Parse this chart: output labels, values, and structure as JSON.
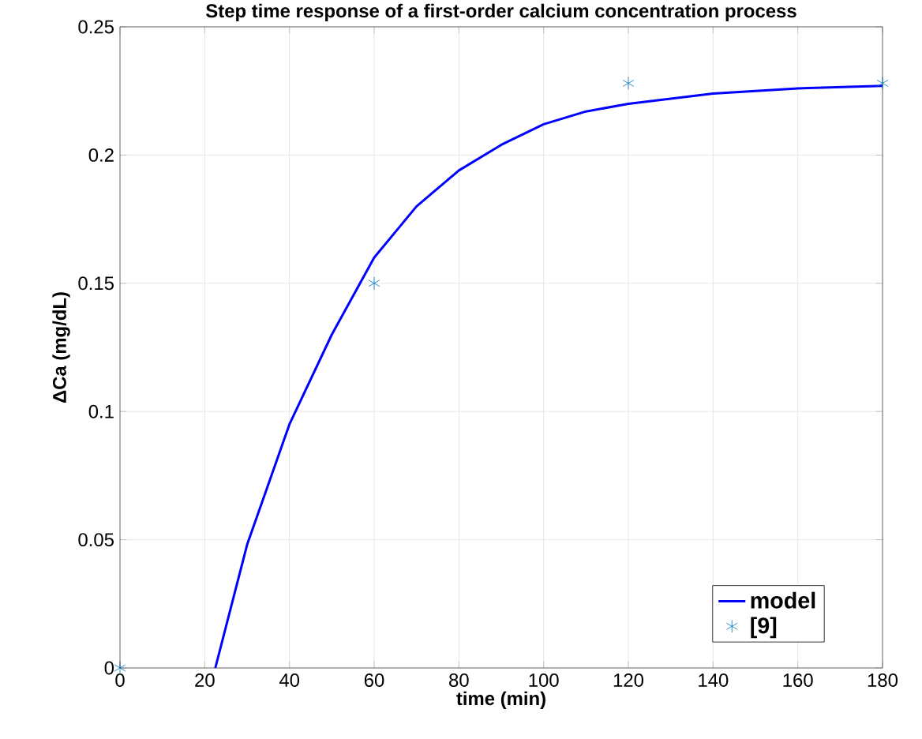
{
  "chart_data": {
    "type": "line",
    "title": "Step time response of a first-order calcium concentration process",
    "xlabel": "time (min)",
    "ylabel": "ΔCa (mg/dL)",
    "xlim": [
      0,
      180
    ],
    "ylim": [
      0,
      0.25
    ],
    "xticks": [
      0,
      20,
      40,
      60,
      80,
      100,
      120,
      140,
      160,
      180
    ],
    "yticks": [
      0,
      0.05,
      0.1,
      0.15,
      0.2,
      0.25
    ],
    "grid": true,
    "legend": "bottom right",
    "series": [
      {
        "name": "model",
        "color": "#0000ff",
        "line_style": "solid",
        "x": [
          22.5,
          30,
          40,
          50,
          60,
          70,
          80,
          90,
          100,
          110,
          120,
          140,
          160,
          180
        ],
        "values": [
          0,
          0.048,
          0.095,
          0.13,
          0.16,
          0.18,
          0.194,
          0.204,
          0.212,
          0.217,
          0.22,
          0.224,
          0.226,
          0.227
        ]
      },
      {
        "name": "[9]",
        "type": "scatter",
        "color": "#0072bd",
        "marker": "cross",
        "x": [
          0,
          60,
          120,
          180
        ],
        "values": [
          0,
          0.15,
          0.228,
          0.228
        ]
      }
    ]
  }
}
